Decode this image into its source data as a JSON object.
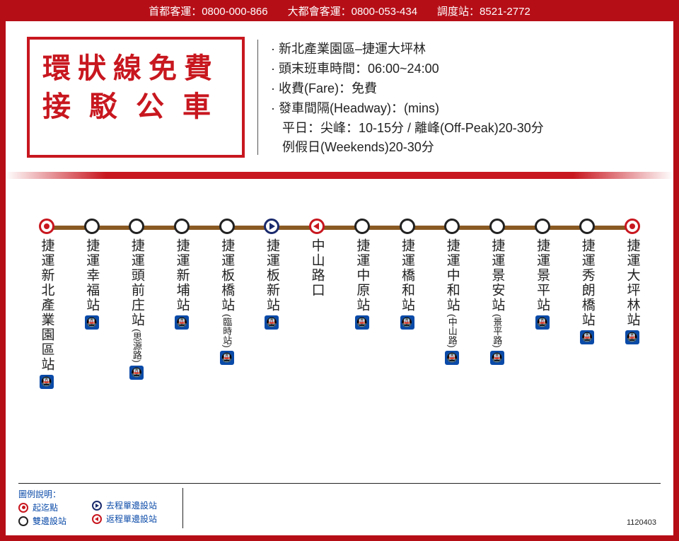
{
  "colors": {
    "brand_red": "#b60e17",
    "accent_red": "#c8171f",
    "line_brown": "#8a5a23",
    "mrt_blue": "#0a4aa8",
    "navy": "#1a2a6c",
    "text": "#222222",
    "white": "#ffffff"
  },
  "header": {
    "contact1": "首都客運：0800-000-866",
    "contact2": "大都會客運：0800-053-434",
    "contact3": "調度站：8521-2772"
  },
  "title": {
    "line1": "環狀線免費",
    "line2": "接駁公車"
  },
  "info": {
    "route": "新北產業園區–捷運大坪林",
    "hours": "頭末班車時間：06:00~24:00",
    "fare": "收費(Fare)：免費",
    "headway": "發車間隔(Headway)：(mins)",
    "headway_weekday": "平日：尖峰：10-15分 / 離峰(Off-Peak)20-30分",
    "headway_weekend": "例假日(Weekends)20-30分"
  },
  "route": {
    "line_color": "#8a5a23",
    "marker_size": 22,
    "stops": [
      {
        "name": "捷運新北產業園區站",
        "sub": "",
        "type": "terminus",
        "mrt": true
      },
      {
        "name": "捷運幸福站",
        "sub": "",
        "type": "both",
        "mrt": true
      },
      {
        "name": "捷運頭前庄站",
        "sub": "(思源路)",
        "type": "both",
        "mrt": true
      },
      {
        "name": "捷運新埔站",
        "sub": "",
        "type": "both",
        "mrt": true
      },
      {
        "name": "捷運板橋站",
        "sub": "(臨時站)",
        "type": "both",
        "mrt": true
      },
      {
        "name": "捷運板新站",
        "sub": "",
        "type": "outbound",
        "mrt": true
      },
      {
        "name": "中山路口",
        "sub": "",
        "type": "return",
        "mrt": false
      },
      {
        "name": "捷運中原站",
        "sub": "",
        "type": "both",
        "mrt": true
      },
      {
        "name": "捷運橋和站",
        "sub": "",
        "type": "both",
        "mrt": true
      },
      {
        "name": "捷運中和站",
        "sub": "(中山路)",
        "type": "both",
        "mrt": true
      },
      {
        "name": "捷運景安站",
        "sub": "(景平路)",
        "type": "both",
        "mrt": true
      },
      {
        "name": "捷運景平站",
        "sub": "",
        "type": "both",
        "mrt": true
      },
      {
        "name": "捷運秀朗橋站",
        "sub": "",
        "type": "both",
        "mrt": true
      },
      {
        "name": "捷運大坪林站",
        "sub": "",
        "type": "terminus",
        "mrt": true
      }
    ]
  },
  "legend": {
    "title": "圖例說明：",
    "terminus": "起迄點",
    "both": "雙邊設站",
    "outbound": "去程單邊設站",
    "return": "返程單邊設站"
  },
  "date_code": "1120403"
}
